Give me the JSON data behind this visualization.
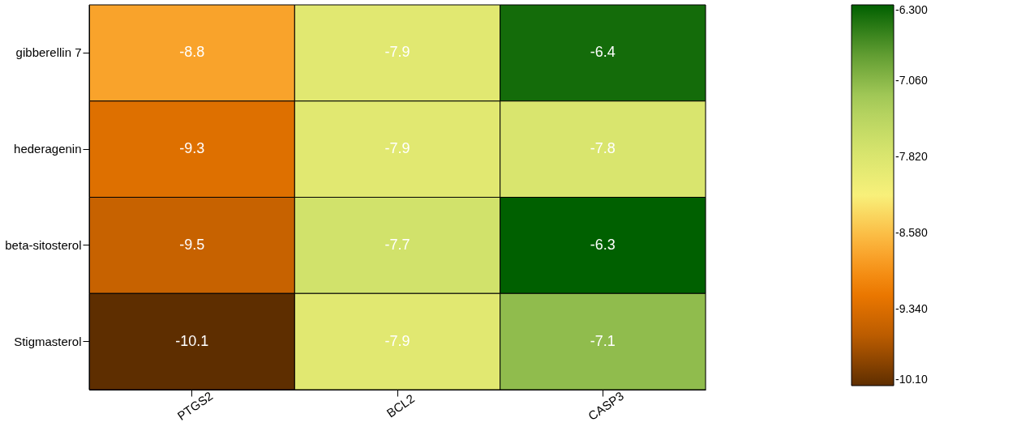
{
  "chart_data": {
    "type": "heatmap",
    "categories": [
      "PTGS2",
      "BCL2",
      "CASP3"
    ],
    "y_categories": [
      "gibberellin 7",
      "hederagenin",
      "beta-sitosterol",
      "Stigmasterol"
    ],
    "cells": [
      [
        -8.8,
        -7.9,
        -6.4
      ],
      [
        -9.3,
        -7.9,
        -7.8
      ],
      [
        -9.5,
        -7.7,
        -6.3
      ],
      [
        -10.1,
        -7.9,
        -7.1
      ]
    ],
    "data_labels": true,
    "clim": [
      -10.1,
      -6.3
    ],
    "cticks": [
      {
        "value": -6.3,
        "label": "-6.300"
      },
      {
        "value": -7.06,
        "label": "-7.060"
      },
      {
        "value": -7.82,
        "label": "-7.820"
      },
      {
        "value": -8.58,
        "label": "-8.580"
      },
      {
        "value": -9.34,
        "label": "-9.340"
      },
      {
        "value": -10.1,
        "label": "-10.10"
      }
    ]
  }
}
